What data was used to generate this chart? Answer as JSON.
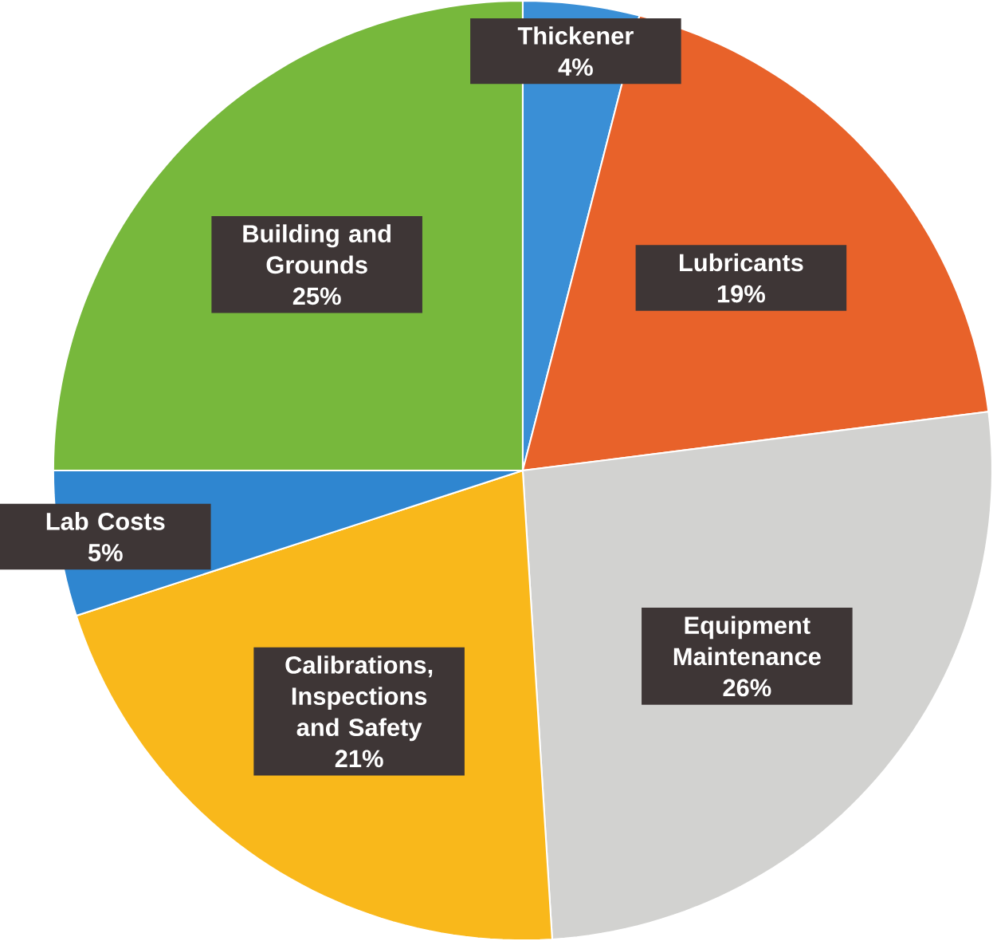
{
  "chart_data": {
    "type": "pie",
    "categories": [
      "Thickener",
      "Lubricants",
      "Equipment Maintenance",
      "Calibrations, Inspections and Safety",
      "Lab Costs",
      "Building and Grounds"
    ],
    "values": [
      4,
      19,
      26,
      21,
      5,
      25
    ],
    "value_labels": [
      "4%",
      "19%",
      "26%",
      "21%",
      "5%",
      "25%"
    ],
    "colors": [
      "#3a8fd6",
      "#e8622a",
      "#d2d2d0",
      "#f9b81b",
      "#2f86d0",
      "#77b83c"
    ]
  }
}
